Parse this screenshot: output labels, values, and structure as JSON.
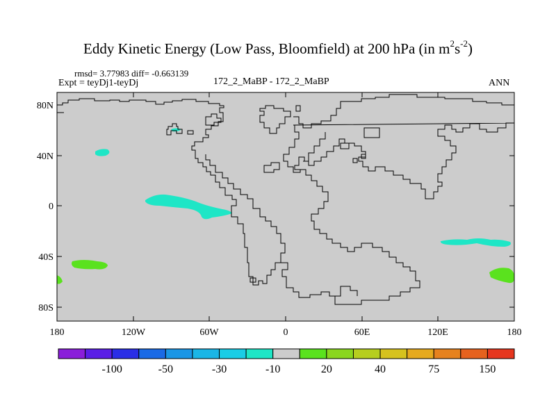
{
  "title": {
    "main": "Eddy Kinetic Energy (Low Pass, Bloomfield) at 200 hPa (in m",
    "sup1": "2",
    "mid": "s",
    "sup2": "-2",
    "end": ")"
  },
  "stats": "rmsd= 3.77983 diff= -0.663139",
  "expt_label": "Expt = teyDj1-teyDj",
  "case_label": "172_2_MaBP - 172_2_MaBP",
  "period_label": "ANN",
  "map": {
    "background_color": "#cccccc",
    "lat_ticks": [
      "80N",
      "40N",
      "0",
      "40S",
      "80S"
    ],
    "lon_ticks": [
      "180",
      "120W",
      "60W",
      "0",
      "60E",
      "120E",
      "180"
    ],
    "anomaly_regions": [
      {
        "name": "North Pacific",
        "lon": -145,
        "lat": 37,
        "value_class": "-10 to -30",
        "color": "#1ee6c6"
      },
      {
        "name": "Arctic Canada",
        "lon": -80,
        "lat": 63,
        "value_class": "-10 to -30",
        "color": "#1ee6c6"
      },
      {
        "name": "Tropical East Pacific",
        "lon": -60,
        "lat": 3,
        "value_class": "-10 to -30",
        "color": "#1ee6c6"
      },
      {
        "name": "Southern Ocean SE of Australia",
        "lon": 150,
        "lat": -26,
        "value_class": "-10 to -30",
        "color": "#1ee6c6"
      },
      {
        "name": "South Pacific",
        "lon": -150,
        "lat": -43,
        "value_class": "10 to 20",
        "color": "#5ae21e"
      },
      {
        "name": "Southern Ocean near Dateline",
        "lon": 172,
        "lat": -51,
        "value_class": "10 to 20",
        "color": "#5ae21e"
      },
      {
        "name": "Southern Ocean near Dateline (west edge)",
        "lon": -178,
        "lat": -56,
        "value_class": "10 to 20",
        "color": "#5ae21e"
      }
    ]
  },
  "colorbar": {
    "colors": [
      "#8a1eda",
      "#5a1ee6",
      "#2a2ee6",
      "#1a6ae6",
      "#1a96e6",
      "#1ab6e6",
      "#1acde6",
      "#1ee6c6",
      "#cccccc",
      "#5ae21e",
      "#8ad61e",
      "#b6ce1e",
      "#d6c21e",
      "#e6aa1e",
      "#e6821e",
      "#e6621e",
      "#e6361e"
    ],
    "labels": [
      "-100",
      "-50",
      "-30",
      "-10",
      "20",
      "40",
      "75",
      "150"
    ]
  }
}
